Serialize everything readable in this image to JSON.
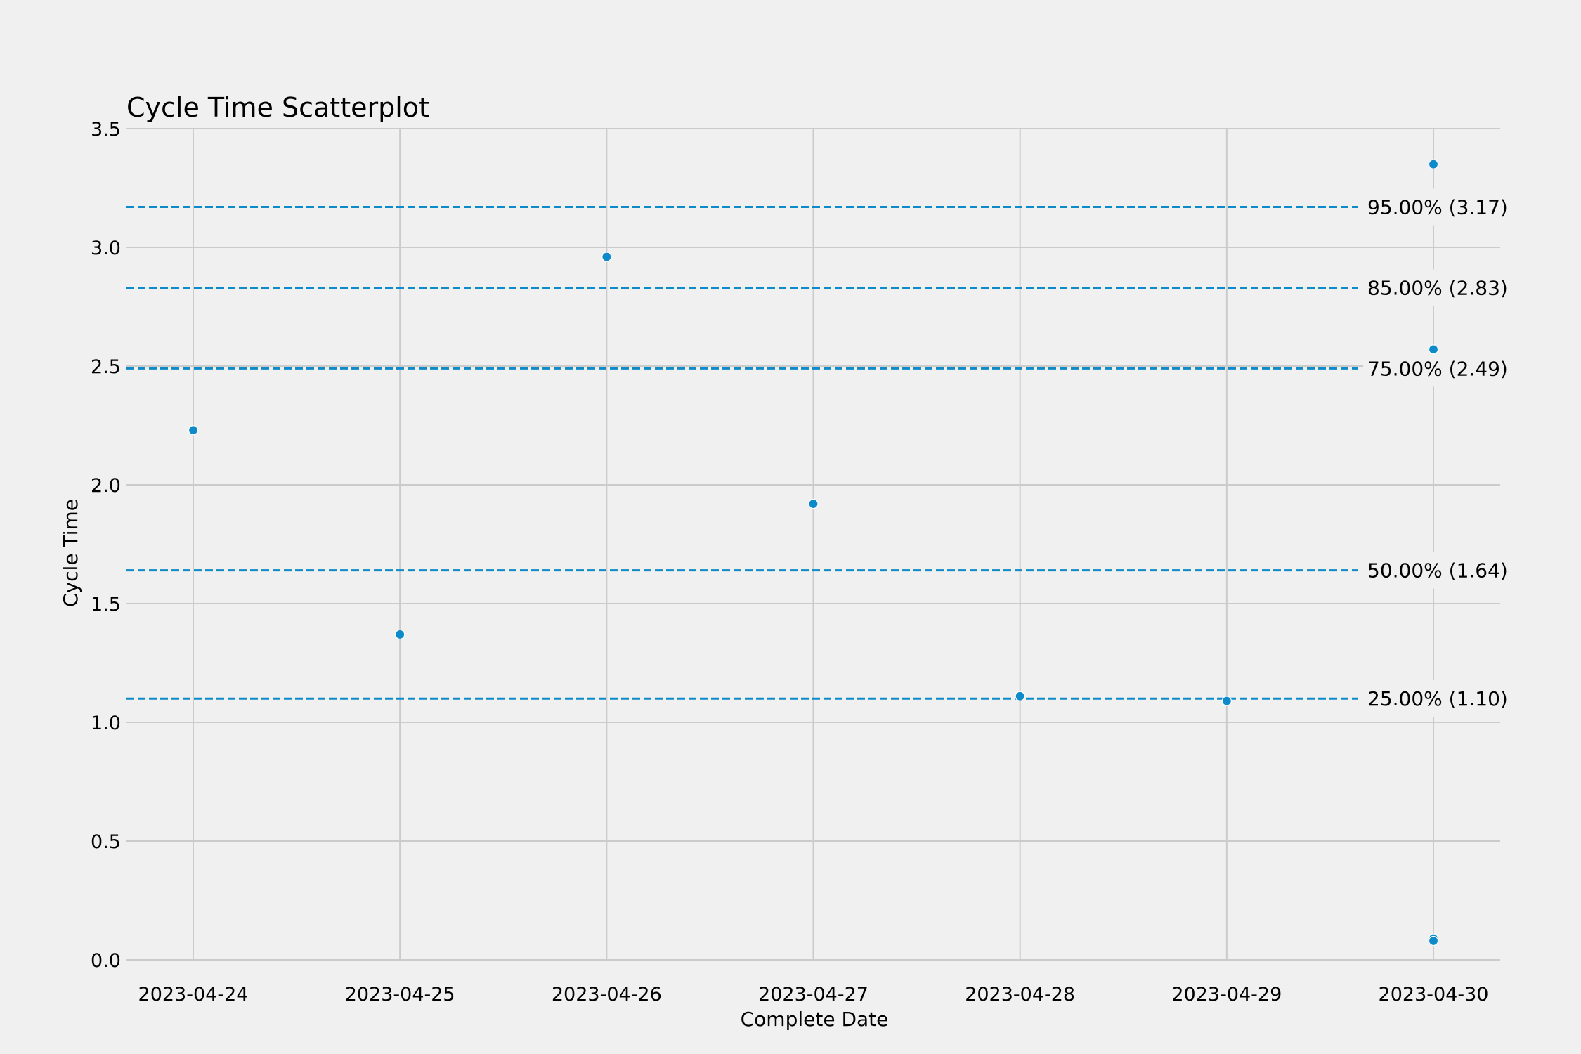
{
  "chart_data": {
    "type": "scatter",
    "title": "Cycle Time Scatterplot",
    "xlabel": "Complete Date",
    "ylabel": "Cycle Time",
    "xlim": [
      "2023-04-23T16:15",
      "2023-04-30T07:45"
    ],
    "ylim": [
      0,
      3.5
    ],
    "x_ticks": [
      "2023-04-24",
      "2023-04-25",
      "2023-04-26",
      "2023-04-27",
      "2023-04-28",
      "2023-04-29",
      "2023-04-30"
    ],
    "y_ticks": [
      "0.0",
      "0.5",
      "1.0",
      "1.5",
      "2.0",
      "2.5",
      "3.0",
      "3.5"
    ],
    "grid": true,
    "points": [
      {
        "x": "2023-04-24",
        "y": 2.23
      },
      {
        "x": "2023-04-25",
        "y": 1.37
      },
      {
        "x": "2023-04-26",
        "y": 2.96
      },
      {
        "x": "2023-04-27",
        "y": 1.92
      },
      {
        "x": "2023-04-28",
        "y": 1.11
      },
      {
        "x": "2023-04-29",
        "y": 1.09
      },
      {
        "x": "2023-04-30",
        "y": 3.35
      },
      {
        "x": "2023-04-30",
        "y": 2.57
      },
      {
        "x": "2023-04-30",
        "y": 0.09
      },
      {
        "x": "2023-04-30",
        "y": 0.08
      }
    ],
    "percentiles": [
      {
        "value": 3.17,
        "label": "95.00% (3.17)"
      },
      {
        "value": 2.83,
        "label": "85.00% (2.83)"
      },
      {
        "value": 2.49,
        "label": "75.00% (2.49)"
      },
      {
        "value": 1.64,
        "label": "50.00% (1.64)"
      },
      {
        "value": 1.1,
        "label": "25.00% (1.10)"
      }
    ],
    "colors": {
      "point": "#0d8ac9",
      "percentile_line": "#0d8ac9",
      "grid": "#cbcbcb",
      "background": "#f0f0f0"
    }
  }
}
